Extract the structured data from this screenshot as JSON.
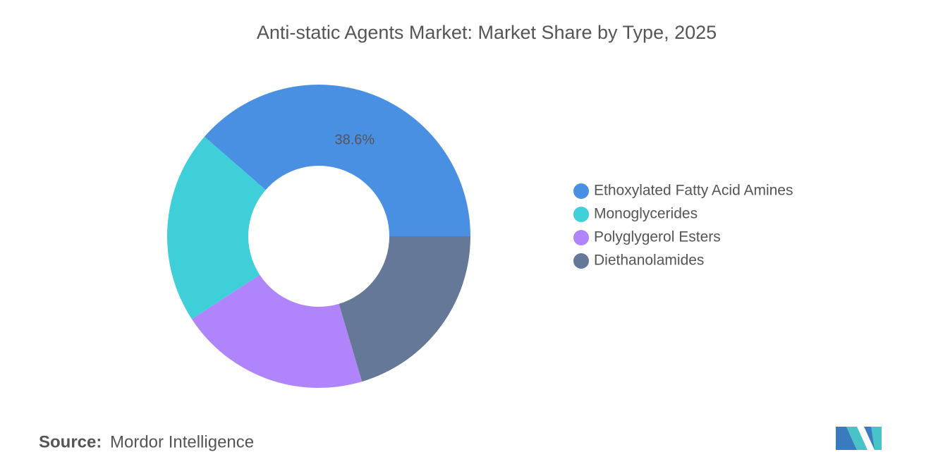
{
  "chart_data": {
    "type": "donut",
    "title": "Anti-static Agents Market: Market Share by Type, 2025",
    "series": [
      {
        "name": "Ethoxylated Fatty Acid Amines",
        "color": "#4a90e2"
      },
      {
        "name": "Monoglycerides",
        "color": "#3ecfd9"
      },
      {
        "name": "Polyglygerol Esters",
        "color": "#b085fb"
      },
      {
        "name": "Diethanolamides",
        "color": "#657897"
      }
    ],
    "values": [
      38.6,
      20.6,
      20.4,
      20.4
    ],
    "value_labels": [
      "38.6%",
      null,
      null,
      null
    ],
    "legend": "right"
  },
  "source": {
    "label": "Source:",
    "text": "Mordor Intelligence"
  }
}
